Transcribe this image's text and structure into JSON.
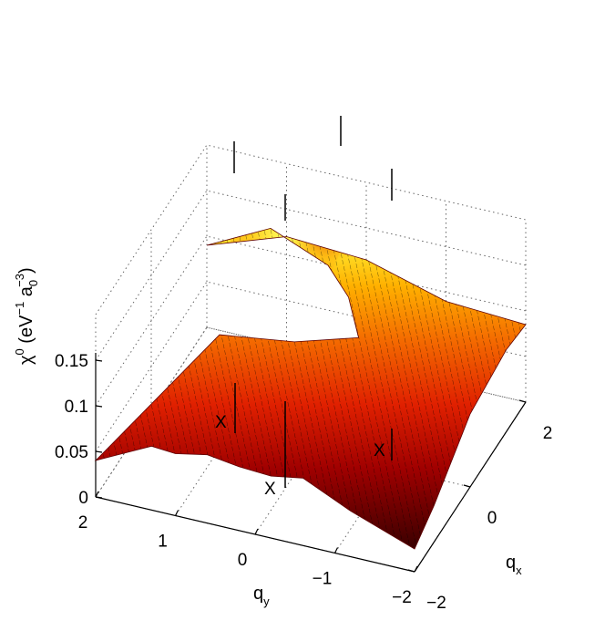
{
  "chart_data": {
    "type": "surface",
    "title": "",
    "xlabel": {
      "main": "q",
      "sub": "x"
    },
    "ylabel": {
      "main": "q",
      "sub": "y"
    },
    "zlabel": {
      "main": "χ",
      "sup": "0",
      "paren_open": " (eV",
      "unit_sup": "−1",
      "unit_a": " a",
      "a_sub": "0",
      "a_sup": "−3",
      "paren_close": ")"
    },
    "xlim": [
      -2,
      2
    ],
    "ylim": [
      -2,
      2
    ],
    "zlim": [
      0,
      0.15
    ],
    "x_ticks": [
      "−2",
      "0",
      "2"
    ],
    "y_ticks": [
      "2",
      "1",
      "0",
      "−1",
      "−2"
    ],
    "z_ticks": [
      "0",
      "0.05",
      "0.1",
      "0.15"
    ],
    "grid": true,
    "colormap": "hot",
    "colors": {
      "low": "#3a0000",
      "mid": "#e02000",
      "high": "#ffff40",
      "mesh": "#000000"
    },
    "surface_levels": {
      "corners": 0.04,
      "edge_valleys": 0.08,
      "central_plateau": 0.12,
      "peaks_near_gamma": 0.13,
      "center_dip": 0.1
    },
    "annotations": [
      {
        "text": "X",
        "x": -2,
        "y": 0
      },
      {
        "text": "X",
        "x": 0,
        "y": 2
      },
      {
        "text": "X",
        "x": 0,
        "y": -2
      }
    ]
  }
}
